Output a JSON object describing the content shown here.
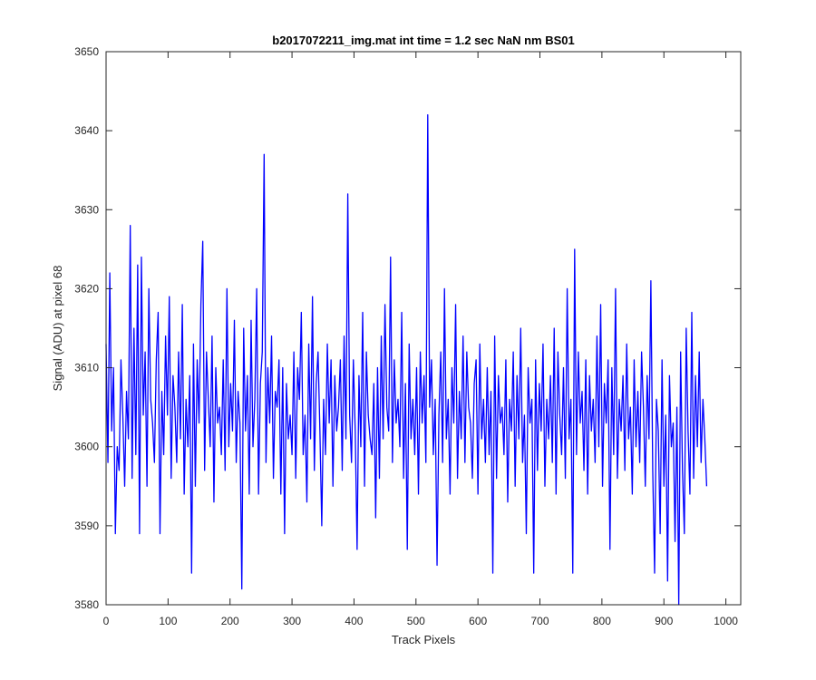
{
  "chart_data": {
    "type": "line",
    "title": "b2017072211_img.mat int time = 1.2 sec  NaN nm BS01",
    "xlabel": "Track Pixels",
    "ylabel": "Signal (ADU) at pixel 68",
    "xlim": [
      0,
      1024
    ],
    "ylim": [
      3580,
      3650
    ],
    "x_ticks": [
      0,
      100,
      200,
      300,
      400,
      500,
      600,
      700,
      800,
      900,
      1000
    ],
    "y_ticks": [
      3580,
      3590,
      3600,
      3610,
      3620,
      3630,
      3640,
      3650
    ],
    "grid": false,
    "series": [
      {
        "color": "#0000ff",
        "x_start": 0,
        "x_step": 3,
        "values": [
          3613,
          3598,
          3622,
          3602,
          3610,
          3589,
          3600,
          3597,
          3611,
          3604,
          3595,
          3607,
          3601,
          3628,
          3596,
          3615,
          3599,
          3623,
          3589,
          3624,
          3604,
          3612,
          3595,
          3620,
          3606,
          3603,
          3598,
          3611,
          3617,
          3589,
          3607,
          3599,
          3614,
          3604,
          3619,
          3596,
          3609,
          3605,
          3598,
          3612,
          3601,
          3618,
          3594,
          3606,
          3600,
          3609,
          3584,
          3613,
          3595,
          3611,
          3603,
          3618,
          3626,
          3597,
          3612,
          3606,
          3600,
          3614,
          3593,
          3610,
          3603,
          3605,
          3599,
          3611,
          3597,
          3620,
          3600,
          3608,
          3602,
          3616,
          3598,
          3607,
          3603,
          3582,
          3615,
          3602,
          3609,
          3594,
          3616,
          3600,
          3606,
          3620,
          3594,
          3608,
          3612,
          3637,
          3598,
          3610,
          3603,
          3614,
          3596,
          3607,
          3605,
          3611,
          3594,
          3610,
          3589,
          3608,
          3601,
          3604,
          3599,
          3612,
          3596,
          3610,
          3606,
          3617,
          3599,
          3604,
          3593,
          3613,
          3601,
          3619,
          3597,
          3608,
          3612,
          3602,
          3590,
          3606,
          3599,
          3613,
          3603,
          3611,
          3595,
          3609,
          3602,
          3605,
          3611,
          3597,
          3614,
          3601,
          3632,
          3604,
          3598,
          3611,
          3602,
          3587,
          3609,
          3600,
          3617,
          3595,
          3612,
          3604,
          3601,
          3599,
          3608,
          3591,
          3610,
          3596,
          3614,
          3601,
          3618,
          3605,
          3602,
          3624,
          3598,
          3611,
          3603,
          3606,
          3600,
          3617,
          3596,
          3608,
          3587,
          3613,
          3601,
          3606,
          3599,
          3610,
          3594,
          3612,
          3603,
          3609,
          3598,
          3642,
          3605,
          3611,
          3599,
          3606,
          3585,
          3604,
          3612,
          3598,
          3620,
          3601,
          3606,
          3594,
          3610,
          3603,
          3618,
          3596,
          3607,
          3601,
          3614,
          3598,
          3612,
          3605,
          3603,
          3596,
          3608,
          3611,
          3594,
          3613,
          3601,
          3606,
          3598,
          3610,
          3599,
          3607,
          3584,
          3614,
          3596,
          3609,
          3603,
          3605,
          3599,
          3611,
          3593,
          3606,
          3602,
          3612,
          3595,
          3609,
          3601,
          3615,
          3598,
          3604,
          3589,
          3610,
          3603,
          3606,
          3584,
          3611,
          3597,
          3608,
          3602,
          3613,
          3595,
          3606,
          3601,
          3609,
          3598,
          3615,
          3594,
          3612,
          3604,
          3599,
          3610,
          3596,
          3620,
          3601,
          3606,
          3584,
          3625,
          3599,
          3612,
          3603,
          3607,
          3597,
          3611,
          3594,
          3609,
          3602,
          3606,
          3598,
          3614,
          3600,
          3618,
          3595,
          3608,
          3603,
          3611,
          3587,
          3610,
          3599,
          3620,
          3596,
          3606,
          3602,
          3609,
          3597,
          3613,
          3601,
          3605,
          3594,
          3611,
          3600,
          3607,
          3598,
          3612,
          3605,
          3595,
          3609,
          3601,
          3621,
          3597,
          3584,
          3606,
          3602,
          3589,
          3611,
          3595,
          3604,
          3583,
          3609,
          3600,
          3603,
          3588,
          3605,
          3580,
          3612,
          3597,
          3589,
          3615,
          3602,
          3594,
          3617,
          3596,
          3609,
          3600,
          3612,
          3598,
          3606,
          3601,
          3595
        ]
      }
    ]
  }
}
